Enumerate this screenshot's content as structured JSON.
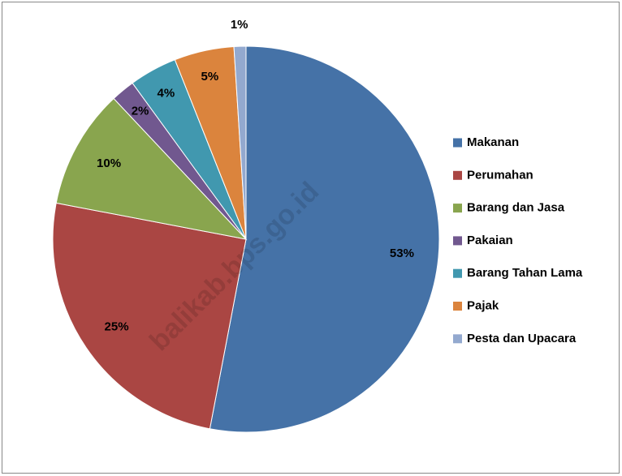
{
  "chart_data": {
    "type": "pie",
    "categories": [
      "Makanan",
      "Perumahan",
      "Barang dan Jasa",
      "Pakaian",
      "Barang Tahan Lama",
      "Pajak",
      "Pesta dan Upacara"
    ],
    "values": [
      53,
      25,
      10,
      2,
      4,
      5,
      1
    ],
    "value_labels": [
      "53%",
      "25%",
      "10%",
      "2%",
      "4%",
      "5%",
      "1%"
    ],
    "colors": [
      "#4572a7",
      "#aa4643",
      "#89a54e",
      "#71588f",
      "#4198af",
      "#db843d",
      "#93a9cf"
    ],
    "legend": "right",
    "watermark": "balikab.bps.go.id"
  }
}
